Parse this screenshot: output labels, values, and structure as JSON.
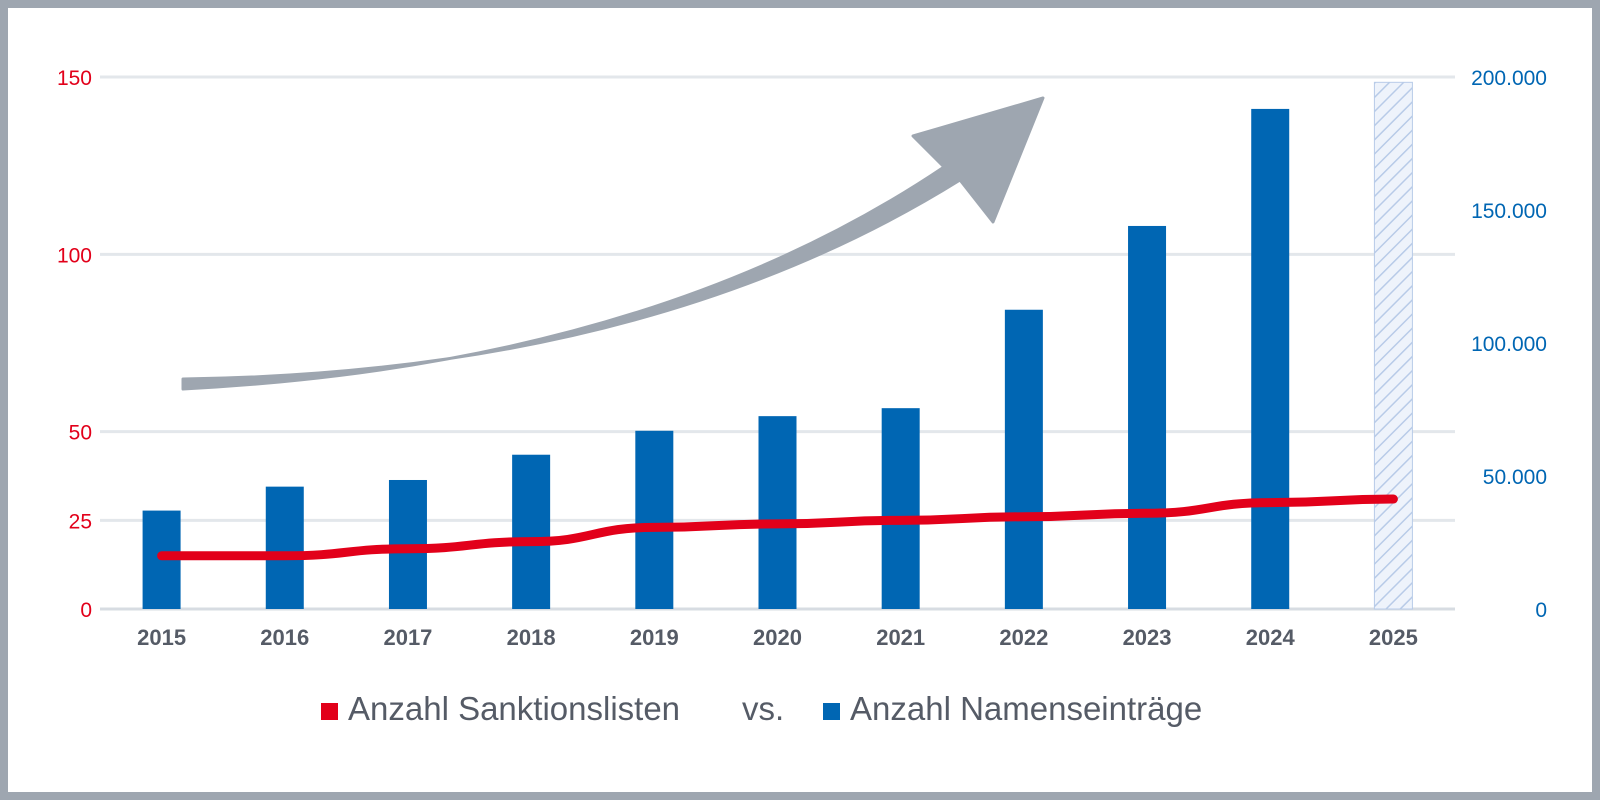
{
  "chart_data": {
    "type": "bar",
    "categories": [
      "2015",
      "2016",
      "2017",
      "2018",
      "2019",
      "2020",
      "2021",
      "2022",
      "2023",
      "2024",
      "2025"
    ],
    "series": [
      {
        "name": "Anzahl Sanktionslisten",
        "type": "line",
        "axis": "left",
        "color": "#e2001a",
        "values": [
          15,
          15,
          17,
          19,
          23,
          24,
          25,
          26,
          27,
          30,
          31
        ]
      },
      {
        "name": "Anzahl Namenseinträge",
        "type": "bar",
        "axis": "right",
        "color": "#0066b3",
        "values": [
          37000,
          46000,
          48500,
          58000,
          67000,
          72500,
          75500,
          112500,
          144000,
          188000,
          null
        ]
      }
    ],
    "projected_category": "2025",
    "projected_bar_value": 198000,
    "projected_color": "#b8cbe8",
    "left_axis": {
      "ylim": [
        0,
        150
      ],
      "ticks": [
        0,
        25,
        50,
        100,
        150
      ],
      "tick_labels": [
        "0",
        "25",
        "50",
        "100",
        "150"
      ],
      "color": "#e2001a"
    },
    "right_axis": {
      "ylim": [
        0,
        200000
      ],
      "ticks": [
        0,
        50000,
        100000,
        150000,
        200000
      ],
      "tick_labels": [
        "0",
        "50.000",
        "100.000",
        "150.000",
        "200.000"
      ],
      "color": "#0066b3"
    },
    "gridlines": true,
    "trend_arrow": {
      "color": "#9ea6b0",
      "meaning": "increasing trend"
    },
    "legend": {
      "position": "bottom-center",
      "entries": [
        "Anzahl Sanktionslisten",
        "Anzahl Namenseinträge"
      ],
      "separator": "vs."
    },
    "title": "",
    "xlabel": "",
    "ylabel": ""
  }
}
